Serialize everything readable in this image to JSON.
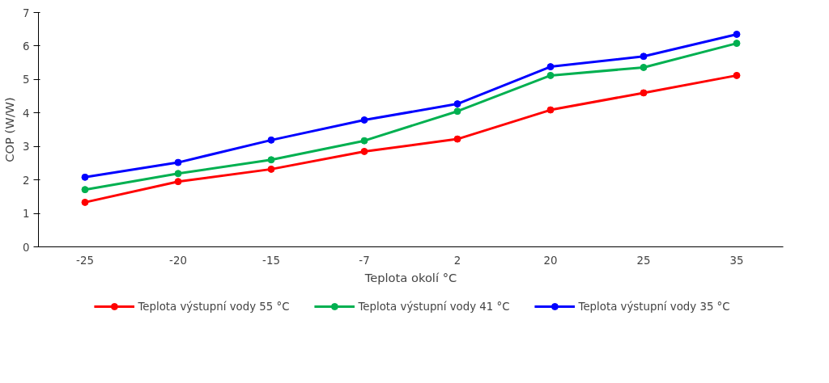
{
  "chart_data": {
    "type": "line",
    "xlabel": "Teplota okolí °C",
    "ylabel": "COP (W/W)",
    "categories": [
      "-25",
      "-20",
      "-15",
      "-7",
      "2",
      "20",
      "25",
      "35"
    ],
    "series": [
      {
        "name": "Teplota výstupní vody 55 °C",
        "color": "#ff0000",
        "values": [
          1.33,
          1.95,
          2.32,
          2.85,
          3.22,
          4.09,
          4.6,
          5.12
        ]
      },
      {
        "name": "Teplota výstupní vody 41 °C",
        "color": "#00b050",
        "values": [
          1.71,
          2.19,
          2.6,
          3.17,
          4.05,
          5.12,
          5.36,
          6.08
        ]
      },
      {
        "name": "Teplota výstupní vody 35 °C",
        "color": "#0000ff",
        "values": [
          2.08,
          2.52,
          3.19,
          3.79,
          4.27,
          5.38,
          5.69,
          6.35
        ]
      }
    ],
    "ylim": [
      0,
      7
    ],
    "yticks": [
      0,
      1,
      2,
      3,
      4,
      5,
      6,
      7
    ],
    "grid": false,
    "legend": "bottom",
    "marker": "circle",
    "line_style": "solid"
  }
}
